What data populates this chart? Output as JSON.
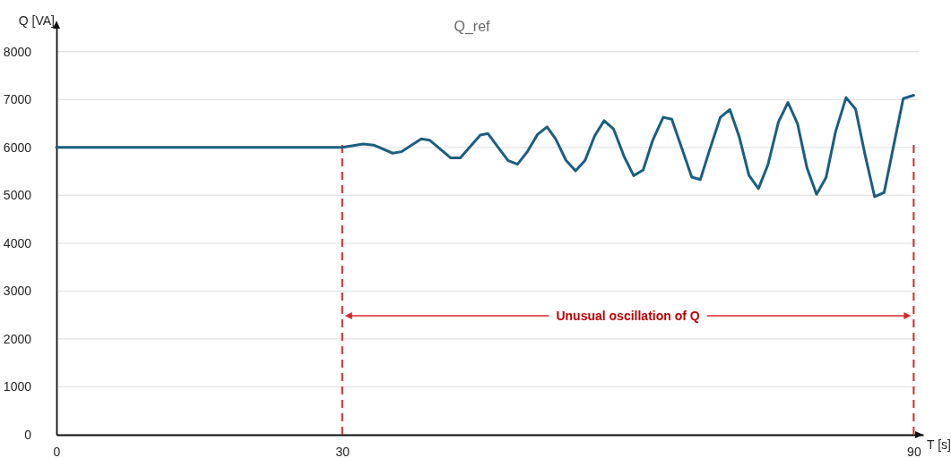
{
  "chart_data": {
    "type": "line",
    "title": "Q_ref",
    "xlabel": "T [s]",
    "ylabel": "Q [VA]",
    "x": [
      0,
      30,
      32.2,
      33.3,
      35.3,
      36.2,
      38.3,
      39.2,
      41.4,
      42.4,
      44.5,
      45.3,
      47.4,
      48.4,
      49.4,
      50.5,
      51.5,
      52.4,
      53.5,
      54.5,
      55.5,
      56.5,
      57.5,
      58.5,
      59.6,
      60.6,
      61.6,
      62.6,
      63.7,
      64.6,
      66.7,
      67.6,
      68.5,
      69.7,
      70.7,
      71.7,
      72.7,
      73.7,
      74.7,
      75.8,
      76.8,
      77.8,
      78.8,
      79.8,
      80.8,
      81.8,
      82.9,
      83.9,
      84.9,
      85.9,
      86.9,
      88.9,
      90
    ],
    "series": [
      {
        "color": "#1b5e80",
        "values": [
          6000,
          6000,
          6070,
          6050,
          5880,
          5910,
          6180,
          6150,
          5780,
          5780,
          6260,
          6290,
          5730,
          5650,
          5900,
          6270,
          6430,
          6180,
          5730,
          5510,
          5730,
          6240,
          6560,
          6380,
          5810,
          5410,
          5530,
          6150,
          6630,
          6590,
          5380,
          5330,
          5900,
          6630,
          6790,
          6210,
          5420,
          5140,
          5640,
          6530,
          6940,
          6500,
          5570,
          5020,
          5370,
          6330,
          7040,
          6800,
          5840,
          4970,
          5060,
          7020,
          7090
        ]
      }
    ],
    "xlim": [
      0,
      91
    ],
    "ylim": [
      0,
      8500
    ],
    "xticks": [
      0,
      30,
      90
    ],
    "yticks": [
      0,
      1000,
      2000,
      3000,
      4000,
      5000,
      6000,
      7000,
      8000
    ],
    "grid": "y",
    "marker": "none",
    "line_style": "solid",
    "ref_lines": [
      {
        "axis": "x",
        "value": 30,
        "color": "#d62728",
        "line_style": "dashed"
      },
      {
        "axis": "x",
        "value": 90,
        "color": "#d62728",
        "line_style": "dashed"
      }
    ],
    "annotations": [
      "Unusual oscillation of Q"
    ]
  }
}
